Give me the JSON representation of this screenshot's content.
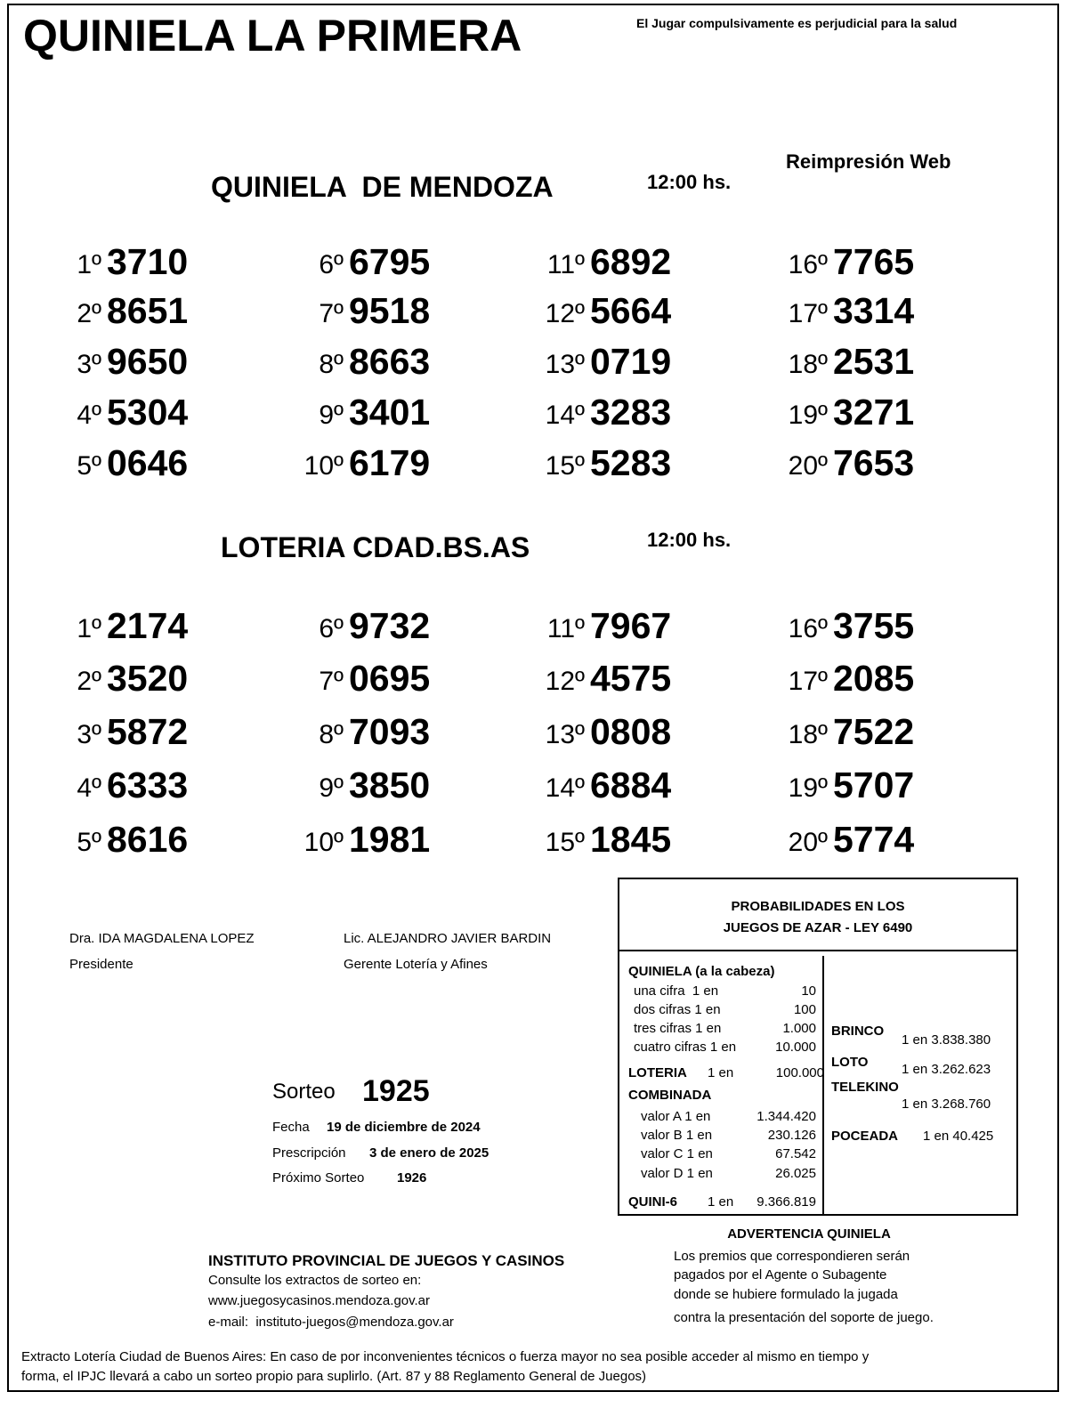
{
  "header": {
    "title": "QUINIELA LA PRIMERA",
    "warning": "El Jugar compulsivamente es perjudicial para la salud",
    "reprint": "Reimpresión Web"
  },
  "draws": [
    {
      "name": "QUINIELA  DE MENDOZA",
      "time": "12:00 hs.",
      "results": [
        {
          "pos": "1º",
          "number": "3710"
        },
        {
          "pos": "2º",
          "number": "8651"
        },
        {
          "pos": "3º",
          "number": "9650"
        },
        {
          "pos": "4º",
          "number": "5304"
        },
        {
          "pos": "5º",
          "number": "0646"
        },
        {
          "pos": "6º",
          "number": "6795"
        },
        {
          "pos": "7º",
          "number": "9518"
        },
        {
          "pos": "8º",
          "number": "8663"
        },
        {
          "pos": "9º",
          "number": "3401"
        },
        {
          "pos": "10º",
          "number": "6179"
        },
        {
          "pos": "11º",
          "number": "6892"
        },
        {
          "pos": "12º",
          "number": "5664"
        },
        {
          "pos": "13º",
          "number": "0719"
        },
        {
          "pos": "14º",
          "number": "3283"
        },
        {
          "pos": "15º",
          "number": "5283"
        },
        {
          "pos": "16º",
          "number": "7765"
        },
        {
          "pos": "17º",
          "number": "3314"
        },
        {
          "pos": "18º",
          "number": "2531"
        },
        {
          "pos": "19º",
          "number": "3271"
        },
        {
          "pos": "20º",
          "number": "7653"
        }
      ]
    },
    {
      "name": "LOTERIA CDAD.BS.AS",
      "time": "12:00 hs.",
      "results": [
        {
          "pos": "1º",
          "number": "2174"
        },
        {
          "pos": "2º",
          "number": "3520"
        },
        {
          "pos": "3º",
          "number": "5872"
        },
        {
          "pos": "4º",
          "number": "6333"
        },
        {
          "pos": "5º",
          "number": "8616"
        },
        {
          "pos": "6º",
          "number": "9732"
        },
        {
          "pos": "7º",
          "number": "0695"
        },
        {
          "pos": "8º",
          "number": "7093"
        },
        {
          "pos": "9º",
          "number": "3850"
        },
        {
          "pos": "10º",
          "number": "1981"
        },
        {
          "pos": "11º",
          "number": "7967"
        },
        {
          "pos": "12º",
          "number": "4575"
        },
        {
          "pos": "13º",
          "number": "0808"
        },
        {
          "pos": "14º",
          "number": "6884"
        },
        {
          "pos": "15º",
          "number": "1845"
        },
        {
          "pos": "16º",
          "number": "3755"
        },
        {
          "pos": "17º",
          "number": "2085"
        },
        {
          "pos": "18º",
          "number": "7522"
        },
        {
          "pos": "19º",
          "number": "5707"
        },
        {
          "pos": "20º",
          "number": "5774"
        }
      ]
    }
  ],
  "signatures": [
    {
      "name": "Dra. IDA MAGDALENA LOPEZ",
      "role": "Presidente"
    },
    {
      "name": "Lic. ALEJANDRO JAVIER BARDIN",
      "role": "Gerente Lotería y Afines"
    }
  ],
  "sorteo": {
    "label": "Sorteo",
    "number": "1925",
    "rows": [
      {
        "label": "Fecha",
        "value": "19 de diciembre de 2024"
      },
      {
        "label": "Prescripción",
        "value": "3 de enero de 2025"
      },
      {
        "label": "Próximo Sorteo",
        "value": "1926"
      }
    ]
  },
  "odds": {
    "title": [
      "PROBABILIDADES EN LOS",
      "JUEGOS DE AZAR - LEY 6490"
    ],
    "quiniela": {
      "label": "QUINIELA (a la cabeza)",
      "rows": [
        {
          "label": "una cifra  1 en",
          "value": "10"
        },
        {
          "label": "dos cifras 1 en",
          "value": "100"
        },
        {
          "label": "tres cifras 1 en",
          "value": "1.000"
        },
        {
          "label": "cuatro cifras 1 en",
          "value": "10.000"
        }
      ]
    },
    "loteria": {
      "label": "LOTERIA",
      "odds": "1 en",
      "value": "100.000"
    },
    "combinada": {
      "label": "COMBINADA",
      "rows": [
        {
          "label": "valor A 1 en",
          "value": "1.344.420"
        },
        {
          "label": "valor B 1 en",
          "value": "230.126"
        },
        {
          "label": "valor C 1 en",
          "value": "67.542"
        },
        {
          "label": "valor D 1 en",
          "value": "26.025"
        }
      ]
    },
    "quini6": {
      "label": "QUINI-6",
      "odds": "1 en",
      "value": "9.366.819"
    },
    "others": [
      {
        "label": "BRINCO",
        "value": "1 en 3.838.380"
      },
      {
        "label": "LOTO",
        "value": "1 en 3.262.623"
      },
      {
        "label": "TELEKINO",
        "value": "1 en 3.268.760"
      },
      {
        "label": "POCEADA",
        "value": "1 en 40.425"
      }
    ]
  },
  "advertencia": {
    "title": "ADVERTENCIA QUINIELA",
    "lines": [
      "Los premios que correspondieren serán",
      "pagados por el Agente o Subagente",
      "donde se hubiere formulado la jugada",
      "contra la presentación del soporte de juego."
    ]
  },
  "institute": {
    "name": "INSTITUTO PROVINCIAL DE JUEGOS Y CASINOS",
    "lines": [
      "Consulte los extractos de sorteo en:",
      "www.juegosycasinos.mendoza.gov.ar",
      "e-mail:  instituto-juegos@mendoza.gov.ar"
    ]
  },
  "footer": [
    "Extracto Lotería Ciudad de Buenos Aires: En caso de por inconvenientes técnicos o fuerza mayor no sea posible acceder al mismo en tiempo y",
    "forma, el IPJC llevará a cabo un sorteo propio para suplirlo. (Art. 87 y 88 Reglamento General de Juegos)"
  ]
}
